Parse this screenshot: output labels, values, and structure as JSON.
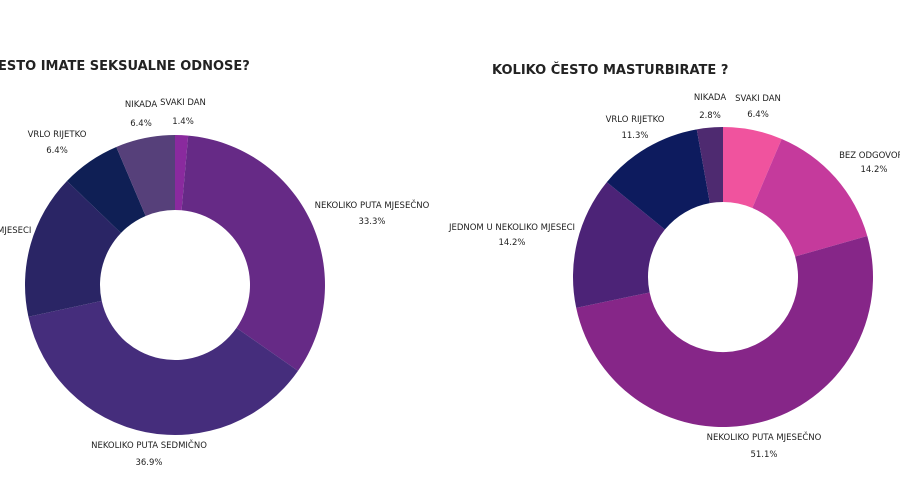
{
  "colors": {
    "svaki_dan_left": "#8a2a9e",
    "nekoliko_mjesecno_left": "#662a86",
    "nekoliko_sedmicno_left": "#452d7c",
    "jednom_left": "#2a2565",
    "vrlo_rijetko_left": "#0f1f55",
    "nikada_left": "#56407a",
    "svaki_dan_right": "#f0539e",
    "bez_odgovora_right": "#c53a9c",
    "nekoliko_mjesecno_right": "#862688",
    "jednom_right": "#4c2377",
    "vrlo_rijetko_right": "#0d1b5e",
    "nikada_right": "#4e2a70"
  },
  "chart_data": [
    {
      "type": "pie",
      "title": "ČESTO IMATE SEKSUALNE ODNOSE?",
      "visible_title": "ESTO IMATE SEKSUALNE ODNOSE?",
      "slices": [
        {
          "label": "SVAKI DAN",
          "value": 1.4,
          "value_label": "1.4%"
        },
        {
          "label": "NEKOLIKO PUTA MJESEČNO",
          "value": 33.3,
          "value_label": "33.3%"
        },
        {
          "label": "NEKOLIKO PUTA SEDMIČNO",
          "value": 36.9,
          "value_label": "36.9%"
        },
        {
          "label": "",
          "value": 15.6,
          "value_label": "",
          "edge_text": "MJESECI"
        },
        {
          "label": "VRLO RIJETKO",
          "value": 6.4,
          "value_label": "6.4%"
        },
        {
          "label": "NIKADA",
          "value": 6.4,
          "value_label": "6.4%"
        }
      ]
    },
    {
      "type": "pie",
      "title": "KOLIKO ČESTO MASTURBIRATE ?",
      "slices": [
        {
          "label": "SVAKI DAN",
          "value": 6.4,
          "value_label": "6.4%"
        },
        {
          "label": "BEZ ODGOVORA",
          "value": 14.2,
          "value_label": "14.2%"
        },
        {
          "label": "NEKOLIKO PUTA MJESEČNO",
          "value": 51.1,
          "value_label": "51.1%"
        },
        {
          "label": "JEDNOM U NEKOLIKO MJESECI",
          "value": 14.2,
          "value_label": "14.2%"
        },
        {
          "label": "VRLO RIJETKO",
          "value": 11.3,
          "value_label": "11.3%"
        },
        {
          "label": "NIKADA",
          "value": 2.8,
          "value_label": "2.8%"
        }
      ]
    }
  ]
}
